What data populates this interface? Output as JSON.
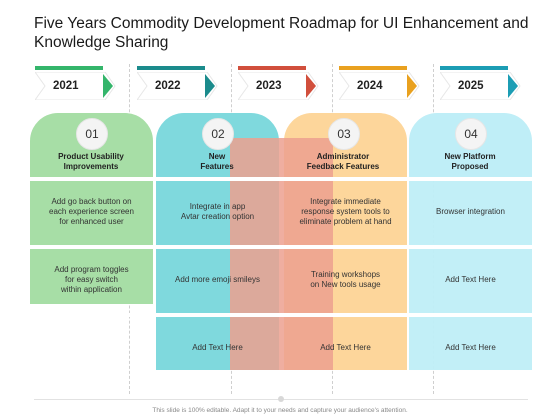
{
  "title": "Five Years Commodity Development Roadmap for UI Enhancement and Knowledge Sharing",
  "colors": {
    "green": "#a7dea6",
    "teal": "#7fd9dd",
    "salmon": "#eca08f",
    "peach": "#fdd69b",
    "lightblue": "#bfeef7"
  },
  "years": [
    {
      "label": "2021",
      "bar_color": "#34b56b",
      "arrow_color": "#34b56b"
    },
    {
      "label": "2022",
      "bar_color": "#1b8b8c",
      "arrow_color": "#1b8b8c"
    },
    {
      "label": "2023",
      "bar_color": "#d14f3c",
      "arrow_color": "#d14f3c"
    },
    {
      "label": "2024",
      "bar_color": "#e9a11f",
      "arrow_color": "#e9a11f"
    },
    {
      "label": "2025",
      "bar_color": "#1c9db4",
      "arrow_color": "#1c9db4"
    }
  ],
  "columns": [
    {
      "number": "01",
      "heading": "Product Usability\nImprovements"
    },
    {
      "number": "02",
      "heading": "New\nFeatures"
    },
    {
      "number": "03",
      "heading": "Administrator\nFeedback Features"
    },
    {
      "number": "04",
      "heading": "New Platform\nProposed"
    }
  ],
  "cells": {
    "r1c1": "Add go back button on\neach experience screen\nfor enhanced user",
    "r1c2": "Integrate in app\nAvtar creation option",
    "r1c3": "Integrate immediate\nresponse system tools to\neliminate problem at hand",
    "r1c4": "Browser integration",
    "r2c1": "Add program toggles\nfor  easy switch\nwithin application",
    "r2c2": "Add more emoji smileys",
    "r2c3": "Training workshops\non New  tools usage",
    "r2c4": "Add Text Here",
    "r3c2": "Add Text Here",
    "r3c3": "Add Text Here",
    "r3c4": "Add Text Here"
  },
  "footer": "This slide is 100% editable. Adapt it to your needs and capture your audience's attention."
}
